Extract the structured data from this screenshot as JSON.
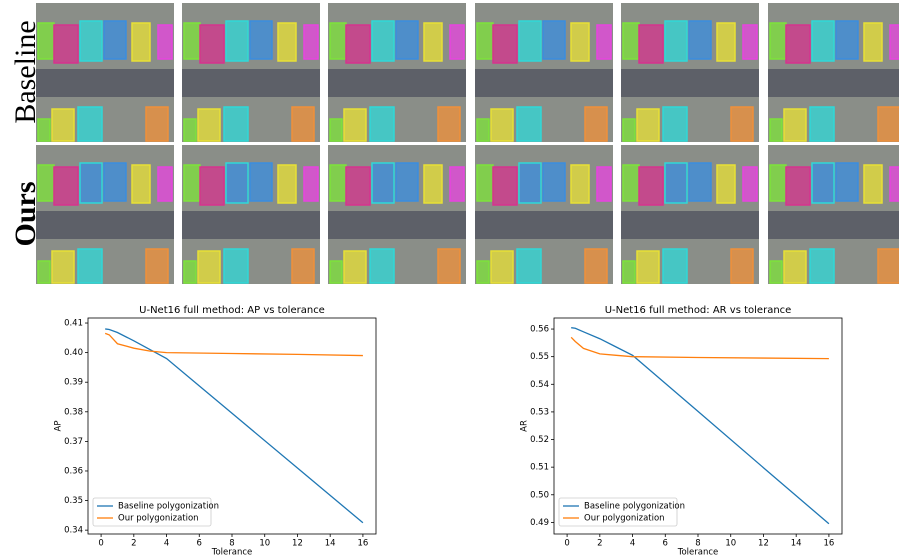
{
  "row_labels": [
    "Baseline",
    "Ours"
  ],
  "chart_data": [
    {
      "type": "line",
      "title": "U-Net16 full method: AP vs tolerance",
      "x_label": "Tolerance",
      "y_label": "AP",
      "x": [
        0.25,
        0.5,
        1,
        2,
        3,
        4,
        8,
        12,
        16
      ],
      "series": [
        {
          "name": "Baseline polygonization",
          "color": "#1f77b4",
          "values": [
            0.408,
            0.4078,
            0.4068,
            0.404,
            0.401,
            0.398,
            0.3795,
            0.361,
            0.3425
          ]
        },
        {
          "name": "Our polygonization",
          "color": "#ff7f0e",
          "values": [
            0.4065,
            0.406,
            0.403,
            0.4015,
            0.4005,
            0.4,
            0.3997,
            0.3994,
            0.399
          ]
        }
      ],
      "xlim": [
        -0.8,
        16.8
      ],
      "ylim": [
        0.3387,
        0.4117
      ],
      "xticks": [
        0,
        2,
        4,
        6,
        8,
        10,
        12,
        14,
        16
      ],
      "yticks": [
        0.34,
        0.35,
        0.36,
        0.37,
        0.38,
        0.39,
        {
          "value": 0.4,
          "label": "0.40"
        },
        0.41
      ],
      "legend": "lower-left"
    },
    {
      "type": "line",
      "title": "U-Net16 full method: AR vs tolerance",
      "x_label": "Tolerance",
      "y_label": "AR",
      "x": [
        0.25,
        0.5,
        1,
        2,
        3,
        4,
        8,
        12,
        16
      ],
      "series": [
        {
          "name": "Baseline polygonization",
          "color": "#1f77b4",
          "values": [
            0.5605,
            0.5603,
            0.559,
            0.5565,
            0.5535,
            0.5505,
            0.5302,
            0.5098,
            0.4895
          ]
        },
        {
          "name": "Our polygonization",
          "color": "#ff7f0e",
          "values": [
            0.557,
            0.5555,
            0.553,
            0.551,
            0.5505,
            0.55,
            0.5497,
            0.5495,
            0.5493
          ]
        }
      ],
      "xlim": [
        -0.8,
        16.8
      ],
      "ylim": [
        0.4858,
        0.564
      ],
      "xticks": [
        0,
        2,
        4,
        6,
        8,
        10,
        12,
        14,
        16
      ],
      "yticks": [
        {
          "value": 0.49,
          "label": "0.49"
        },
        {
          "value": 0.5,
          "label": "0.50"
        },
        0.51,
        0.52,
        0.53,
        0.54,
        0.55,
        0.56
      ],
      "legend": "lower-left"
    }
  ]
}
